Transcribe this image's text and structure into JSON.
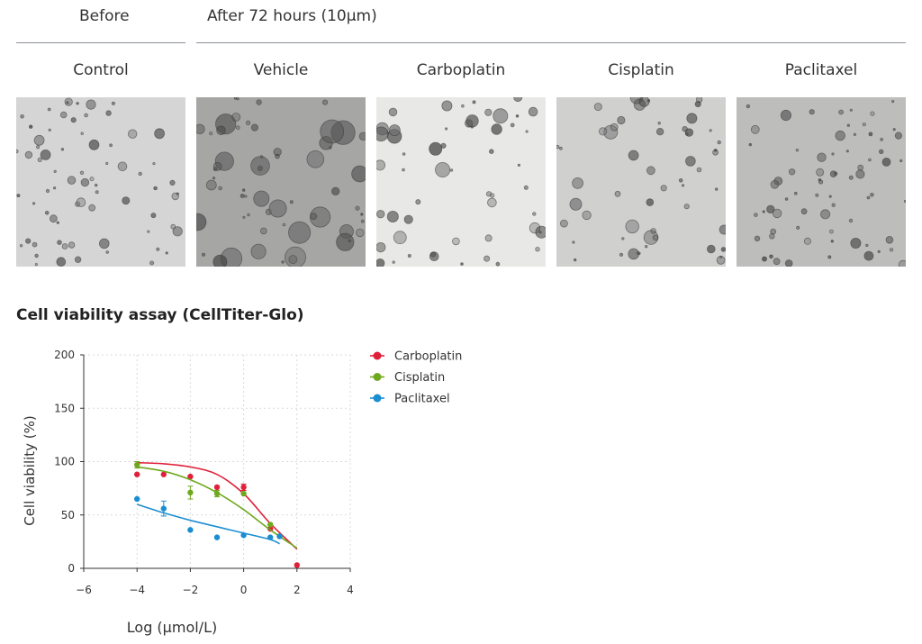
{
  "header": {
    "before_label": "Before",
    "after_label": "After 72 hours (10μm)"
  },
  "columns": [
    {
      "label": "Control",
      "background": "#d4d5d4",
      "density": "sparse"
    },
    {
      "label": "Vehicle",
      "background": "#a6a6a5",
      "density": "dense"
    },
    {
      "label": "Carboplatin",
      "background": "#e8e8e6",
      "density": "medium"
    },
    {
      "label": "Cisplatin",
      "background": "#d0d0cf",
      "density": "medium"
    },
    {
      "label": "Paclitaxel",
      "background": "#bdbdbc",
      "density": "sparse"
    }
  ],
  "section_title": "Cell viability assay (CellTiter-Glo)",
  "chart_data": {
    "type": "scatter",
    "title": "",
    "xlabel": "Log (μmol/L)",
    "ylabel": "Cell viability (%)",
    "xlim": [
      -6,
      4
    ],
    "ylim": [
      0,
      200
    ],
    "xticks": [
      -6,
      -4,
      -2,
      0,
      2,
      4
    ],
    "yticks": [
      0,
      50,
      100,
      150,
      200
    ],
    "grid": true,
    "legend_position": "right",
    "series": [
      {
        "name": "Carboplatin",
        "color": "#e0203a",
        "points": [
          {
            "x": -4,
            "y": 88
          },
          {
            "x": -3,
            "y": 88
          },
          {
            "x": -2,
            "y": 86
          },
          {
            "x": -1,
            "y": 76
          },
          {
            "x": 0,
            "y": 76,
            "err": 3
          },
          {
            "x": 1,
            "y": 37
          },
          {
            "x": 2,
            "y": 3
          }
        ],
        "fit": [
          [
            -4,
            99
          ],
          [
            -3,
            98
          ],
          [
            -2,
            95
          ],
          [
            -1,
            88
          ],
          [
            0,
            70
          ],
          [
            1,
            42
          ],
          [
            2,
            18
          ]
        ]
      },
      {
        "name": "Cisplatin",
        "color": "#6fa81e",
        "points": [
          {
            "x": -4,
            "y": 97,
            "err": 3
          },
          {
            "x": -2,
            "y": 71,
            "err": 6
          },
          {
            "x": -1,
            "y": 70,
            "err": 3
          },
          {
            "x": 0,
            "y": 70
          },
          {
            "x": 1,
            "y": 41
          },
          {
            "x": 1.35,
            "y": 30
          }
        ],
        "fit": [
          [
            -4,
            95
          ],
          [
            -3,
            91
          ],
          [
            -2,
            83
          ],
          [
            -1,
            71
          ],
          [
            0,
            55
          ],
          [
            1,
            36
          ],
          [
            2,
            19
          ]
        ]
      },
      {
        "name": "Paclitaxel",
        "color": "#1b8ed1",
        "points": [
          {
            "x": -4,
            "y": 65
          },
          {
            "x": -3,
            "y": 56,
            "err": 7
          },
          {
            "x": -2,
            "y": 36
          },
          {
            "x": -1,
            "y": 29
          },
          {
            "x": 0,
            "y": 31
          },
          {
            "x": 1,
            "y": 29
          },
          {
            "x": 1.35,
            "y": 30
          }
        ],
        "fit": [
          [
            -4,
            60
          ],
          [
            -3,
            52
          ],
          [
            -2,
            45
          ],
          [
            -1,
            39
          ],
          [
            0,
            33
          ],
          [
            1,
            27
          ],
          [
            1.35,
            23
          ]
        ]
      }
    ]
  }
}
